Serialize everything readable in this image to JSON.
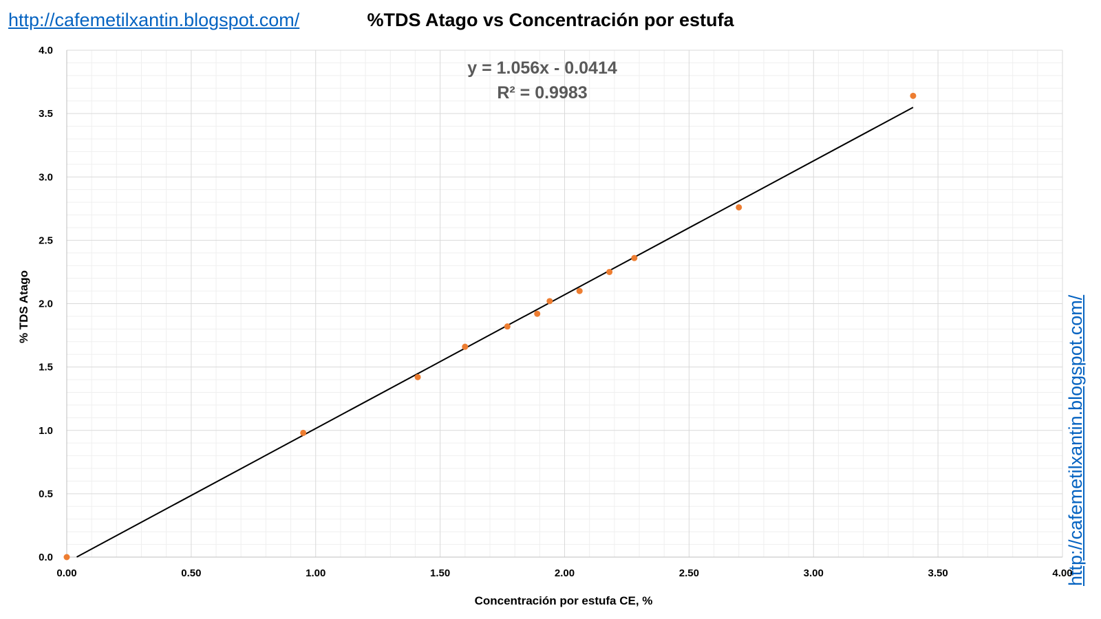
{
  "header": {
    "link_text": "http://cafemetilxantin.blogspot.com/"
  },
  "side": {
    "link_text": "http://cafemetilxantin.blogspot.com/"
  },
  "chart_data": {
    "type": "scatter",
    "title": "%TDS Atago vs Concentración por estufa",
    "xlabel": "Concentración por estufa CE, %",
    "ylabel": "% TDS Atago",
    "xlim": [
      0,
      4
    ],
    "ylim": [
      0,
      4
    ],
    "x_ticks": [
      "0.00",
      "0.50",
      "1.00",
      "1.50",
      "2.00",
      "2.50",
      "3.00",
      "3.50",
      "4.00"
    ],
    "y_ticks": [
      "0.0",
      "0.5",
      "1.0",
      "1.5",
      "2.0",
      "2.5",
      "3.0",
      "3.5",
      "4.0"
    ],
    "grid": true,
    "series": [
      {
        "color": "#ed7d31",
        "x": [
          0.0,
          0.95,
          1.41,
          1.6,
          1.77,
          1.89,
          1.94,
          2.06,
          2.18,
          2.28,
          2.7,
          3.4
        ],
        "y": [
          0.0,
          0.98,
          1.42,
          1.66,
          1.82,
          1.92,
          2.02,
          2.1,
          2.25,
          2.36,
          2.76,
          3.64
        ]
      }
    ],
    "trendline": {
      "type": "linear",
      "slope": 1.056,
      "intercept": -0.0414,
      "x_range": [
        0.04,
        3.4
      ],
      "color": "#000000",
      "equation_text": "y = 1.056x - 0.0414",
      "r2_text": "R² = 0.9983"
    }
  }
}
